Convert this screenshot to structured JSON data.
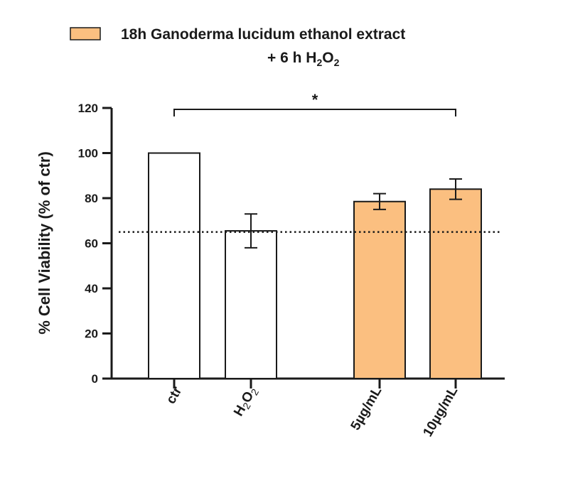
{
  "chart_data": {
    "type": "bar",
    "legend": {
      "line1": "18h Ganoderma lucidum ethanol extract",
      "line2_prefix": "+ 6 h H",
      "line2_sub1": "2",
      "line2_mid": "O",
      "line2_sub2": "2",
      "swatch_color": "#fbbf80",
      "placement": "top-center"
    },
    "ylabel": "% Cell Viability (% of ctr)",
    "ylim": [
      0,
      120
    ],
    "yticks": [
      "0",
      "20",
      "40",
      "60",
      "80",
      "100",
      "120"
    ],
    "categories": [
      {
        "label": "ctr",
        "value": 100,
        "error": 0,
        "fill": "#ffffff"
      },
      {
        "label_main": "H",
        "label_sub1": "2",
        "label_mid": "O",
        "label_sub2": "2",
        "value": 65.5,
        "error": 7.5,
        "fill": "#ffffff"
      },
      {
        "label": "5µg/mL",
        "value": 78.5,
        "error": 3.5,
        "fill": "#fbbf80"
      },
      {
        "label": "10µg/mL",
        "value": 84,
        "error": 4.5,
        "fill": "#fbbf80"
      }
    ],
    "reference_line": 65,
    "significance": {
      "from": 0,
      "to": 3,
      "label": "*"
    },
    "colors": {
      "extract": "#fbbf80",
      "control": "#ffffff",
      "stroke": "#1a1a1a"
    }
  }
}
